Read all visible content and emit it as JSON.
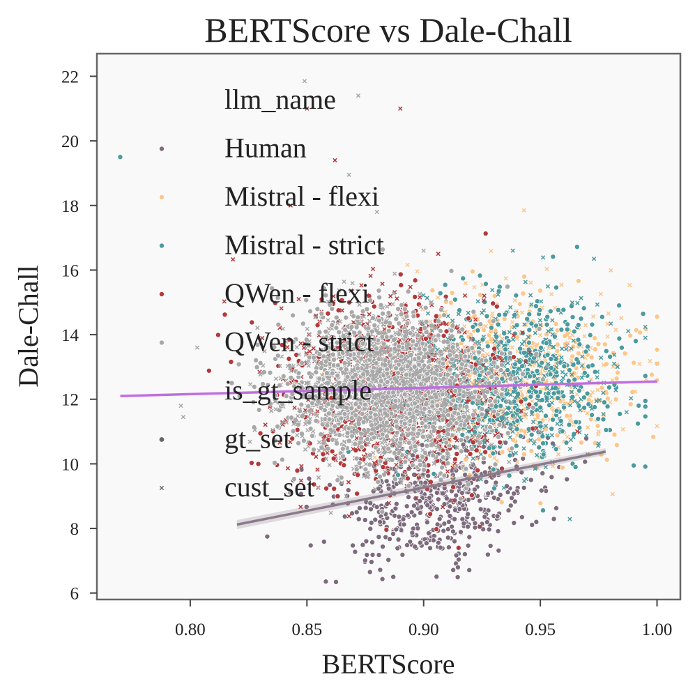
{
  "chart_data": {
    "type": "scatter",
    "title": "BERTScore vs Dale-Chall",
    "xlabel": "BERTScore",
    "ylabel": "Dale-Chall",
    "xlim": [
      0.76,
      1.01
    ],
    "ylim": [
      5.8,
      22.7
    ],
    "xticks": [
      0.8,
      0.85,
      0.9,
      0.95,
      1.0
    ],
    "xtick_labels": [
      "0.80",
      "0.85",
      "0.90",
      "0.95",
      "1.00"
    ],
    "yticks": [
      6,
      8,
      10,
      12,
      14,
      16,
      18,
      20,
      22
    ],
    "ytick_labels": [
      "6",
      "8",
      "10",
      "12",
      "14",
      "16",
      "18",
      "20",
      "22"
    ],
    "legend": {
      "placement": "top-left",
      "hue_title": "llm_name",
      "style_title": "is_gt_sample",
      "hue_entries": [
        "Human",
        "Mistral - flexi",
        "Mistral - strict",
        "QWen - flexi",
        "QWen - strict"
      ],
      "style_entries": [
        "gt_set",
        "cust_set"
      ]
    },
    "colors": {
      "Human": "#7d6b7d",
      "Mistral - flexi": "#fdc68a",
      "Mistral - strict": "#4a9a9e",
      "QWen - flexi": "#b5383a",
      "QWen - strict": "#a8a8a8",
      "trend_all": "#c06ee0",
      "trend_human": "#8a7a8a",
      "legend_marker_dark": "#666666"
    },
    "series": [
      {
        "name": "Human",
        "marker": "o",
        "n": 480,
        "center": [
          0.905,
          8.85
        ],
        "spread": [
          0.022,
          0.95
        ],
        "x_range": [
          0.82,
          0.98
        ]
      },
      {
        "name": "Mistral - flexi",
        "marker": "mixed",
        "n": 750,
        "center": [
          0.935,
          12.7
        ],
        "spread": [
          0.027,
          1.25
        ],
        "x_range": [
          0.8,
          1.0
        ]
      },
      {
        "name": "Mistral - strict",
        "marker": "mixed",
        "n": 850,
        "center": [
          0.938,
          12.5
        ],
        "spread": [
          0.023,
          1.3
        ],
        "x_range": [
          0.77,
          0.995
        ]
      },
      {
        "name": "QWen - flexi",
        "marker": "mixed",
        "n": 900,
        "center": [
          0.885,
          12.3
        ],
        "spread": [
          0.025,
          1.55
        ],
        "x_range": [
          0.8,
          0.98
        ]
      },
      {
        "name": "QWen - strict",
        "marker": "mixed",
        "n": 2400,
        "center": [
          0.885,
          12.3
        ],
        "spread": [
          0.022,
          1.15
        ],
        "x_range": [
          0.8,
          0.97
        ]
      }
    ],
    "outliers": [
      {
        "series": "QWen - strict",
        "marker": "x",
        "x": 0.849,
        "y": 21.85
      },
      {
        "series": "QWen - strict",
        "marker": "x",
        "x": 0.872,
        "y": 21.4
      },
      {
        "series": "QWen - flexi",
        "marker": "x",
        "x": 0.89,
        "y": 21.0
      },
      {
        "series": "QWen - flexi",
        "marker": "x",
        "x": 0.85,
        "y": 21.0
      },
      {
        "series": "Mistral - strict",
        "marker": "o",
        "x": 0.77,
        "y": 19.5
      },
      {
        "series": "QWen - flexi",
        "marker": "x",
        "x": 0.862,
        "y": 19.4
      },
      {
        "series": "QWen - strict",
        "marker": "x",
        "x": 0.868,
        "y": 18.95
      },
      {
        "series": "QWen - flexi",
        "marker": "x",
        "x": 0.843,
        "y": 18.0
      },
      {
        "series": "QWen - strict",
        "marker": "x",
        "x": 0.88,
        "y": 17.8
      },
      {
        "series": "Mistral - flexi",
        "marker": "x",
        "x": 0.943,
        "y": 17.85
      },
      {
        "series": "QWen - strict",
        "marker": "x",
        "x": 0.9,
        "y": 16.6
      },
      {
        "series": "Mistral - strict",
        "marker": "x",
        "x": 0.973,
        "y": 16.35
      },
      {
        "series": "QWen - strict",
        "marker": "x",
        "x": 0.803,
        "y": 13.6
      },
      {
        "series": "QWen - strict",
        "marker": "x",
        "x": 0.796,
        "y": 11.8
      },
      {
        "series": "QWen - strict",
        "marker": "x",
        "x": 0.797,
        "y": 11.45
      },
      {
        "series": "Mistral - strict",
        "marker": "o",
        "x": 0.99,
        "y": 9.95
      },
      {
        "series": "Human",
        "marker": "o",
        "x": 0.877,
        "y": 6.65
      },
      {
        "series": "Human",
        "marker": "o",
        "x": 0.887,
        "y": 6.5
      },
      {
        "series": "Human",
        "marker": "o",
        "x": 0.833,
        "y": 7.75
      }
    ],
    "trend_lines": [
      {
        "name": "all samples",
        "x": [
          0.77,
          1.0
        ],
        "y": [
          12.1,
          12.55
        ]
      },
      {
        "name": "Human",
        "x": [
          0.82,
          0.978
        ],
        "y": [
          8.12,
          10.38
        ]
      }
    ]
  }
}
